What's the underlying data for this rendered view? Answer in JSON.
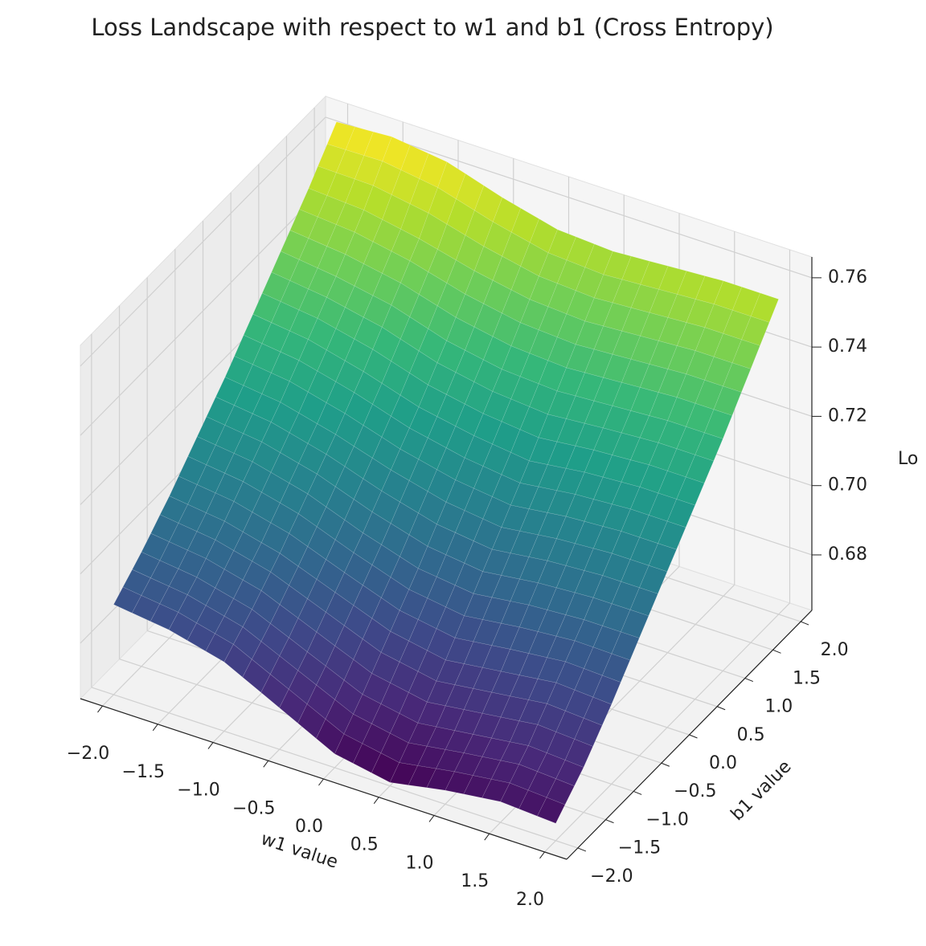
{
  "chart_data": {
    "type": "surface",
    "title": "Loss Landscape with respect to w1 and b1 (Cross Entropy)",
    "xlabel": "w1 value",
    "ylabel": "b1 value",
    "zlabel": "Lo",
    "colormap": "viridis",
    "x": [
      -2,
      -1.5,
      -1,
      -0.5,
      0,
      0.5,
      1,
      1.5,
      2
    ],
    "y": [
      -2,
      -1.5,
      -1,
      -0.5,
      0,
      0.5,
      1,
      1.5,
      2
    ],
    "z": [
      [
        0.69,
        0.688,
        0.684,
        0.676,
        0.668,
        0.665,
        0.668,
        0.67,
        0.669
      ],
      [
        0.697,
        0.695,
        0.691,
        0.684,
        0.677,
        0.674,
        0.676,
        0.678,
        0.677
      ],
      [
        0.705,
        0.703,
        0.699,
        0.693,
        0.687,
        0.684,
        0.686,
        0.688,
        0.687
      ],
      [
        0.714,
        0.712,
        0.708,
        0.702,
        0.697,
        0.695,
        0.697,
        0.698,
        0.698
      ],
      [
        0.723,
        0.721,
        0.717,
        0.712,
        0.708,
        0.706,
        0.708,
        0.709,
        0.709
      ],
      [
        0.733,
        0.731,
        0.727,
        0.722,
        0.719,
        0.717,
        0.719,
        0.72,
        0.72
      ],
      [
        0.743,
        0.741,
        0.738,
        0.733,
        0.73,
        0.729,
        0.73,
        0.731,
        0.731
      ],
      [
        0.753,
        0.752,
        0.749,
        0.745,
        0.742,
        0.741,
        0.742,
        0.743,
        0.743
      ],
      [
        0.764,
        0.765,
        0.763,
        0.758,
        0.754,
        0.753,
        0.754,
        0.755,
        0.755
      ]
    ],
    "xlim": [
      -2.2,
      2.2
    ],
    "ylim": [
      -2.2,
      2.2
    ],
    "zlim": [
      0.664,
      0.766
    ],
    "xticks": [
      {
        "value": -2,
        "label": "−2.0"
      },
      {
        "value": -1.5,
        "label": "−1.5"
      },
      {
        "value": -1,
        "label": "−1.0"
      },
      {
        "value": -0.5,
        "label": "−0.5"
      },
      {
        "value": 0,
        "label": "0.0"
      },
      {
        "value": 0.5,
        "label": "0.5"
      },
      {
        "value": 1,
        "label": "1.0"
      },
      {
        "value": 1.5,
        "label": "1.5"
      },
      {
        "value": 2,
        "label": "2.0"
      }
    ],
    "yticks": [
      {
        "value": -2,
        "label": "−2.0"
      },
      {
        "value": -1.5,
        "label": "−1.5"
      },
      {
        "value": -1,
        "label": "−1.0"
      },
      {
        "value": -0.5,
        "label": "−0.5"
      },
      {
        "value": 0,
        "label": "0.0"
      },
      {
        "value": 0.5,
        "label": "0.5"
      },
      {
        "value": 1,
        "label": "1.0"
      },
      {
        "value": 1.5,
        "label": "1.5"
      },
      {
        "value": 2,
        "label": "2.0"
      }
    ],
    "zticks": [
      0.68,
      {
        "value": 0.7,
        "label": "0.70"
      },
      0.72,
      0.74,
      0.76
    ],
    "grid": true
  }
}
